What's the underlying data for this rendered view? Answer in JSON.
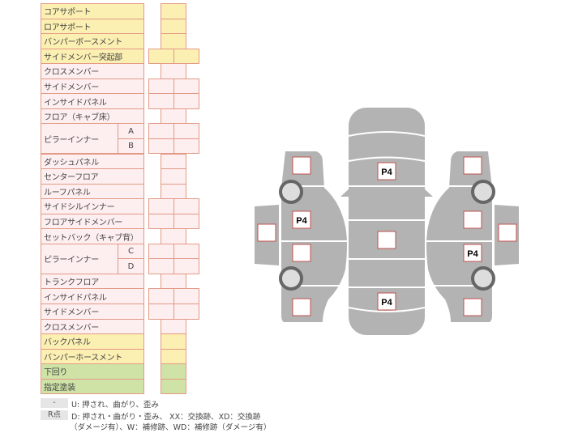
{
  "rows": [
    {
      "label": "コアサポート",
      "color": "y",
      "cells": 1
    },
    {
      "label": "ロアサポート",
      "color": "y",
      "cells": 1
    },
    {
      "label": "バンパーボースメント",
      "color": "y",
      "cells": 1
    },
    {
      "label": "サイドメンバー突起部",
      "color": "y",
      "cells": 2
    },
    {
      "label": "クロスメンバー",
      "color": "p",
      "cells": 1
    },
    {
      "label": "サイドメンバー",
      "color": "p",
      "cells": 2
    },
    {
      "label": "インサイドパネル",
      "color": "p",
      "cells": 2
    },
    {
      "label": "フロア（キャブ床）",
      "color": "p",
      "cells": 1
    },
    {
      "label": "ピラーインナー",
      "sub": "A",
      "color": "p",
      "cells": 2
    },
    {
      "label": "",
      "sub": "B",
      "color": "p",
      "cells": 2
    },
    {
      "label": "ダッシュパネル",
      "color": "p",
      "cells": 1
    },
    {
      "label": "センターフロア",
      "color": "p",
      "cells": 1
    },
    {
      "label": "ルーフパネル",
      "color": "p",
      "cells": 1
    },
    {
      "label": "サイドシルインナー",
      "color": "p",
      "cells": 2
    },
    {
      "label": "フロアサイドメンバー",
      "color": "p",
      "cells": 2
    },
    {
      "label": "セットバック（キャブ背）",
      "color": "p",
      "cells": 1
    },
    {
      "label": "ピラーインナー",
      "sub": "C",
      "color": "p",
      "cells": 2
    },
    {
      "label": "",
      "sub": "D",
      "color": "p",
      "cells": 2
    },
    {
      "label": "トランクフロア",
      "color": "p",
      "cells": 1
    },
    {
      "label": "インサイドパネル",
      "color": "p",
      "cells": 2
    },
    {
      "label": "サイドメンバー",
      "color": "p",
      "cells": 2
    },
    {
      "label": "クロスメンバー",
      "color": "p",
      "cells": 1
    },
    {
      "label": "バックパネル",
      "color": "y",
      "cells": 1
    },
    {
      "label": "バンパーホースメント",
      "color": "y",
      "cells": 1
    },
    {
      "label": "下回り",
      "color": "g",
      "cells": 1
    },
    {
      "label": "指定塗装",
      "color": "g",
      "cells": 1
    }
  ],
  "legend": {
    "key1": "-",
    "text1": "U: 押され、曲がり、歪み",
    "key2": "R点",
    "text2": "D: 押され・曲がり・歪み、 XX：交換跡、XD：交換跡",
    "text3": "（ダメージ有）、W：補修跡、WD：補修跡（ダメージ有）"
  },
  "diagram": {
    "marks": [
      {
        "id": "center-front",
        "value": "P4"
      },
      {
        "id": "center-middle",
        "value": ""
      },
      {
        "id": "center-rear",
        "value": "P4"
      },
      {
        "id": "left-front-fender",
        "value": ""
      },
      {
        "id": "left-front-door",
        "value": "P4"
      },
      {
        "id": "left-rear-door",
        "value": ""
      },
      {
        "id": "left-rear-quarter",
        "value": ""
      },
      {
        "id": "left-side-step",
        "value": ""
      },
      {
        "id": "right-front-fender",
        "value": ""
      },
      {
        "id": "right-front-door",
        "value": ""
      },
      {
        "id": "right-rear-door",
        "value": "P4"
      },
      {
        "id": "right-rear-quarter",
        "value": ""
      },
      {
        "id": "right-side-step",
        "value": ""
      }
    ],
    "colors": {
      "body": "#b3b3b3",
      "mark_border": "#c0504d",
      "wheel": "#666666"
    }
  }
}
